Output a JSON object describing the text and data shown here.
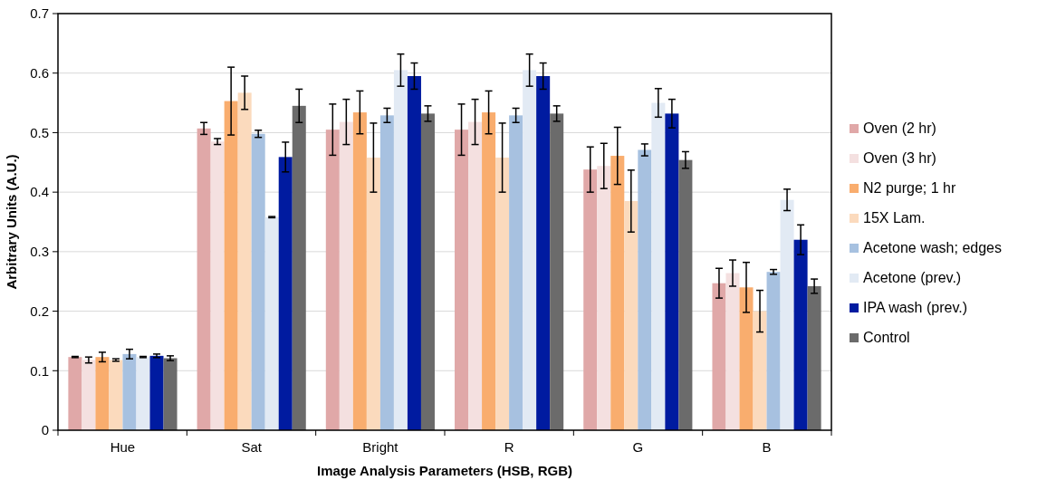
{
  "chart_data": {
    "type": "bar",
    "xlabel": "Image Analysis Parameters (HSB, RGB)",
    "ylabel": "Arbitrary Units (A.U.)",
    "categories": [
      "Hue",
      "Sat",
      "Bright",
      "R",
      "G",
      "B"
    ],
    "ylim": [
      0,
      0.7
    ],
    "yticks": [
      {
        "value": 0,
        "label": "0"
      },
      0.1,
      0.2,
      0.3,
      0.4,
      0.5,
      0.6,
      0.7
    ],
    "grid": "y",
    "legend": "right",
    "series": [
      {
        "name": "Oven (2 hr)",
        "color": "#e0a8a8",
        "values": [
          0.123,
          0.507,
          0.505,
          0.505,
          0.438,
          0.247
        ],
        "errors": [
          0.001,
          0.01,
          0.043,
          0.043,
          0.038,
          0.025
        ]
      },
      {
        "name": "Oven (3 hr)",
        "color": "#f4e0e0",
        "values": [
          0.118,
          0.485,
          0.518,
          0.518,
          0.444,
          0.264
        ],
        "errors": [
          0.005,
          0.005,
          0.038,
          0.038,
          0.038,
          0.022
        ]
      },
      {
        "name": "N2 purge; 1 hr",
        "color": "#f9ad6e",
        "values": [
          0.123,
          0.553,
          0.534,
          0.534,
          0.461,
          0.24
        ],
        "errors": [
          0.008,
          0.057,
          0.036,
          0.036,
          0.048,
          0.042
        ]
      },
      {
        "name": "15X Lam.",
        "color": "#fbdabd",
        "values": [
          0.118,
          0.567,
          0.458,
          0.458,
          0.385,
          0.2
        ],
        "errors": [
          0.002,
          0.028,
          0.058,
          0.058,
          0.052,
          0.035
        ]
      },
      {
        "name": "Acetone wash; edges",
        "color": "#a7c1e0",
        "values": [
          0.128,
          0.498,
          0.529,
          0.529,
          0.471,
          0.266
        ],
        "errors": [
          0.008,
          0.006,
          0.012,
          0.012,
          0.01,
          0.004
        ]
      },
      {
        "name": "Acetone (prev.)",
        "color": "#e2eaf4",
        "values": [
          0.123,
          0.358,
          0.605,
          0.605,
          0.55,
          0.387
        ],
        "errors": [
          0.001,
          0.001,
          0.027,
          0.027,
          0.024,
          0.018
        ]
      },
      {
        "name": "IPA wash (prev.)",
        "color": "#001ba0",
        "values": [
          0.125,
          0.459,
          0.595,
          0.595,
          0.532,
          0.32
        ],
        "errors": [
          0.003,
          0.025,
          0.022,
          0.022,
          0.024,
          0.025
        ]
      },
      {
        "name": "Control",
        "color": "#6b6b6b",
        "values": [
          0.121,
          0.545,
          0.532,
          0.532,
          0.454,
          0.242
        ],
        "errors": [
          0.004,
          0.028,
          0.013,
          0.013,
          0.014,
          0.012
        ]
      }
    ]
  }
}
